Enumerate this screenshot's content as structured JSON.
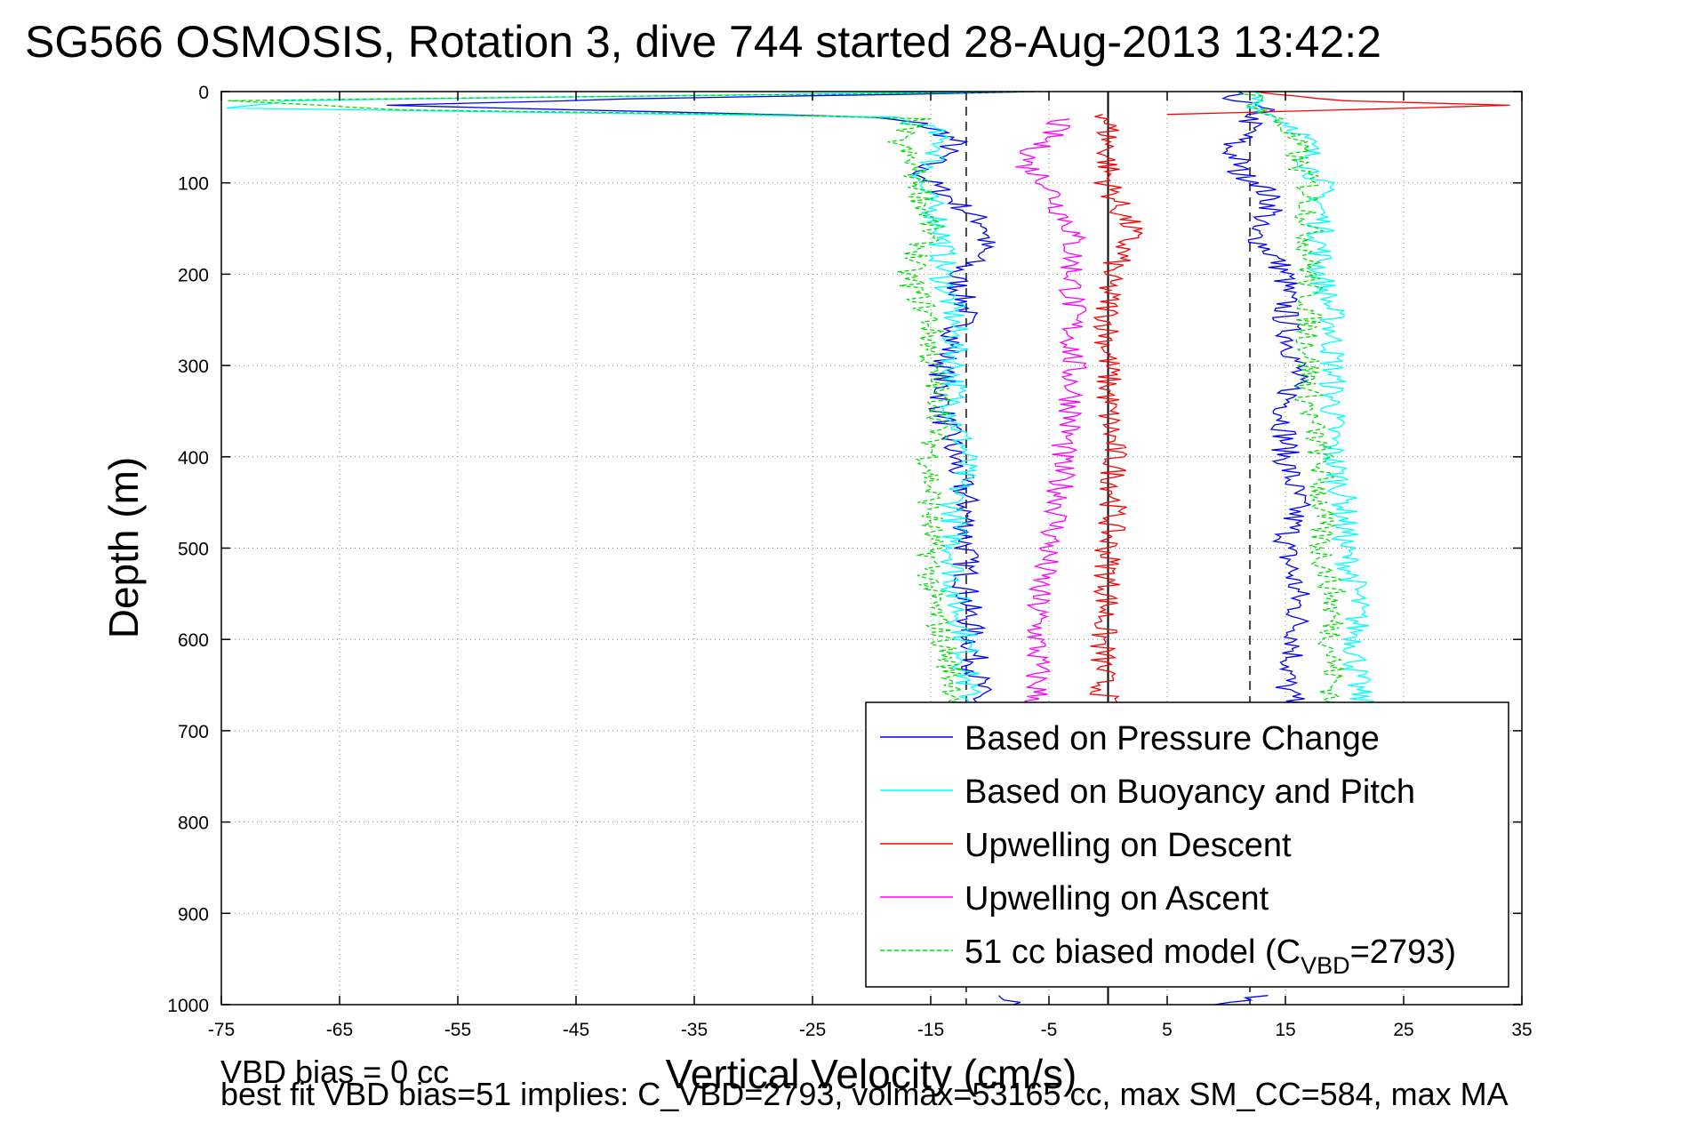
{
  "chart_data": {
    "type": "line",
    "title": "SG566 OSMOSIS, Rotation 3, dive 744 started 28-Aug-2013 13:42:2",
    "xlabel": "Vertical Velocity (cm/s)",
    "ylabel": "Depth (m)",
    "xlim": [
      -75,
      35
    ],
    "ylim": [
      0,
      1000
    ],
    "y_reversed": true,
    "grid": true,
    "grid_style": "dotted",
    "x_ticks": [
      -75,
      -65,
      -55,
      -45,
      -35,
      -25,
      -15,
      -5,
      5,
      15,
      25,
      35
    ],
    "x_tick_labels": [
      "-75",
      "-65",
      "-55",
      "-45",
      "-35",
      "-25",
      "-15",
      "-5",
      "5",
      "15",
      "25",
      "35"
    ],
    "y_ticks": [
      0,
      100,
      200,
      300,
      400,
      500,
      600,
      700,
      800,
      900,
      1000
    ],
    "y_tick_labels": [
      "0",
      "100",
      "200",
      "300",
      "400",
      "500",
      "600",
      "700",
      "800",
      "900",
      "1000"
    ],
    "reference_lines": [
      {
        "x": -12,
        "style": "dashed",
        "color": "#444444"
      },
      {
        "x": 0,
        "style": "solid",
        "color": "#000000"
      },
      {
        "x": 12,
        "style": "dashed",
        "color": "#444444"
      }
    ],
    "legend_position": "bottom-right",
    "legend": [
      {
        "label": "Based on Pressure Change",
        "color": "#0000ff",
        "dash": "solid"
      },
      {
        "label": "Based on Buoyancy and Pitch",
        "color": "#00ffff",
        "dash": "solid"
      },
      {
        "label": "Upwelling on Descent",
        "color": "#ff0000",
        "dash": "solid"
      },
      {
        "label": "Upwelling on Ascent",
        "color": "#ff00ff",
        "dash": "solid"
      },
      {
        "label_main": "51 cc biased model (C",
        "label_sub": "VBD",
        "label_end": "=2793)",
        "color": "#00dd00",
        "dash": "dashed"
      }
    ],
    "series": [
      {
        "name": "Based on Pressure Change",
        "color": "#0000ff",
        "segments": [
          {
            "y": [
              0,
              8,
              15,
              20,
              28,
              35,
              45,
              55,
              70,
              85,
              100,
              130,
              150,
              180,
              200,
              240,
              300,
              350,
              400,
              450,
              500,
              550,
              600,
              650,
              680,
              700
            ],
            "x": [
              -5,
              -40,
              -61,
              -45,
              -20,
              -16,
              -14,
              -13,
              -14,
              -16,
              -15,
              -12,
              -10,
              -11,
              -13,
              -12,
              -14,
              -14,
              -13,
              -12,
              -12,
              -12,
              -11.5,
              -11,
              -11,
              -11.5
            ]
          },
          {
            "y": [
              0,
              10,
              20,
              30,
              45,
              60,
              75,
              90,
              100,
              130,
              150,
              180,
              200,
              250,
              300,
              350,
              400,
              450,
              500,
              550,
              600,
              650,
              680,
              700
            ],
            "x": [
              10,
              11,
              13,
              12,
              12,
              10,
              11,
              11,
              13,
              14,
              12,
              14,
              15,
              15,
              16,
              15,
              15,
              16,
              15,
              16,
              16,
              15,
              16,
              16
            ]
          },
          {
            "y": [
              990,
              1000
            ],
            "x": [
              -10,
              -8
            ]
          },
          {
            "y": [
              990,
              1000
            ],
            "x": [
              14,
              9
            ]
          }
        ]
      },
      {
        "name": "Based on Buoyancy and Pitch",
        "color": "#00ffff",
        "segments": [
          {
            "y": [
              0,
              10,
              18,
              25,
              28,
              40,
              60,
              80,
              100,
              150,
              200,
              250,
              300,
              350,
              400,
              450,
              500,
              550,
              600,
              650,
              700
            ],
            "x": [
              -10,
              -70,
              -75,
              -35,
              -18,
              -15,
              -14,
              -15,
              -16,
              -14,
              -14,
              -13,
              -13,
              -13,
              -12,
              -13,
              -13,
              -13,
              -12,
              -12,
              -11
            ]
          },
          {
            "y": [
              0,
              20,
              40,
              60,
              80,
              100,
              150,
              200,
              250,
              300,
              350,
              400,
              450,
              500,
              550,
              600,
              650,
              700
            ],
            "x": [
              12,
              13,
              16,
              17,
              17,
              18,
              18,
              18,
              19,
              19,
              19,
              19,
              20,
              20,
              21,
              21,
              21,
              22
            ]
          }
        ]
      },
      {
        "name": "Upwelling on Descent",
        "color": "#ff0000",
        "segments": [
          {
            "y": [
              0,
              10,
              15,
              20,
              25
            ],
            "x": [
              12,
              20,
              34,
              20,
              5
            ]
          },
          {
            "y": [
              25,
              50,
              80,
              100,
              130,
              150,
              180,
              200,
              250,
              300,
              350,
              400,
              450,
              500,
              550,
              600,
              650,
              680
            ],
            "x": [
              0,
              0,
              0,
              0,
              1,
              2,
              1,
              0,
              0,
              0,
              0,
              0.5,
              0.5,
              0,
              0,
              -0.5,
              -0.5,
              0
            ]
          }
        ]
      },
      {
        "name": "Upwelling on Ascent",
        "color": "#ff00ff",
        "segments": [
          {
            "y": [
              30,
              50,
              60,
              80,
              100,
              130,
              150,
              200,
              250,
              300,
              350,
              400,
              450,
              500,
              550,
              600,
              650,
              680
            ],
            "x": [
              -4,
              -5,
              -6,
              -7,
              -5,
              -4,
              -3,
              -3,
              -3,
              -3,
              -3,
              -4,
              -4,
              -5,
              -6,
              -6,
              -6,
              -6
            ]
          }
        ]
      },
      {
        "name": "51 cc biased model (C_VBD=2793)",
        "color": "#00dd00",
        "dash": "dashed",
        "segments": [
          {
            "y": [
              0,
              10,
              20,
              25,
              30,
              40,
              50,
              70,
              100,
              150,
              200,
              250,
              300,
              350,
              400,
              450,
              500,
              550,
              600,
              650,
              700
            ],
            "x": [
              -5,
              -75,
              -60,
              -30,
              -16,
              -17,
              -18,
              -17,
              -16,
              -15,
              -17,
              -15,
              -15,
              -14,
              -15,
              -15,
              -15,
              -15,
              -14,
              -13,
              -12
            ]
          },
          {
            "y": [
              0,
              20,
              40,
              60,
              80,
              100,
              150,
              200,
              250,
              300,
              350,
              400,
              450,
              500,
              550,
              600,
              650,
              700
            ],
            "x": [
              12,
              13,
              15,
              16,
              16,
              17,
              17,
              17,
              17,
              17,
              17,
              18,
              18,
              18,
              19,
              19,
              19,
              19
            ]
          }
        ]
      }
    ]
  },
  "footer": {
    "line1": "VBD bias = 0 cc",
    "line2": "best fit VBD bias=51 implies: C_VBD=2793, volmax=53165 cc, max SM_CC=584, max MA"
  }
}
